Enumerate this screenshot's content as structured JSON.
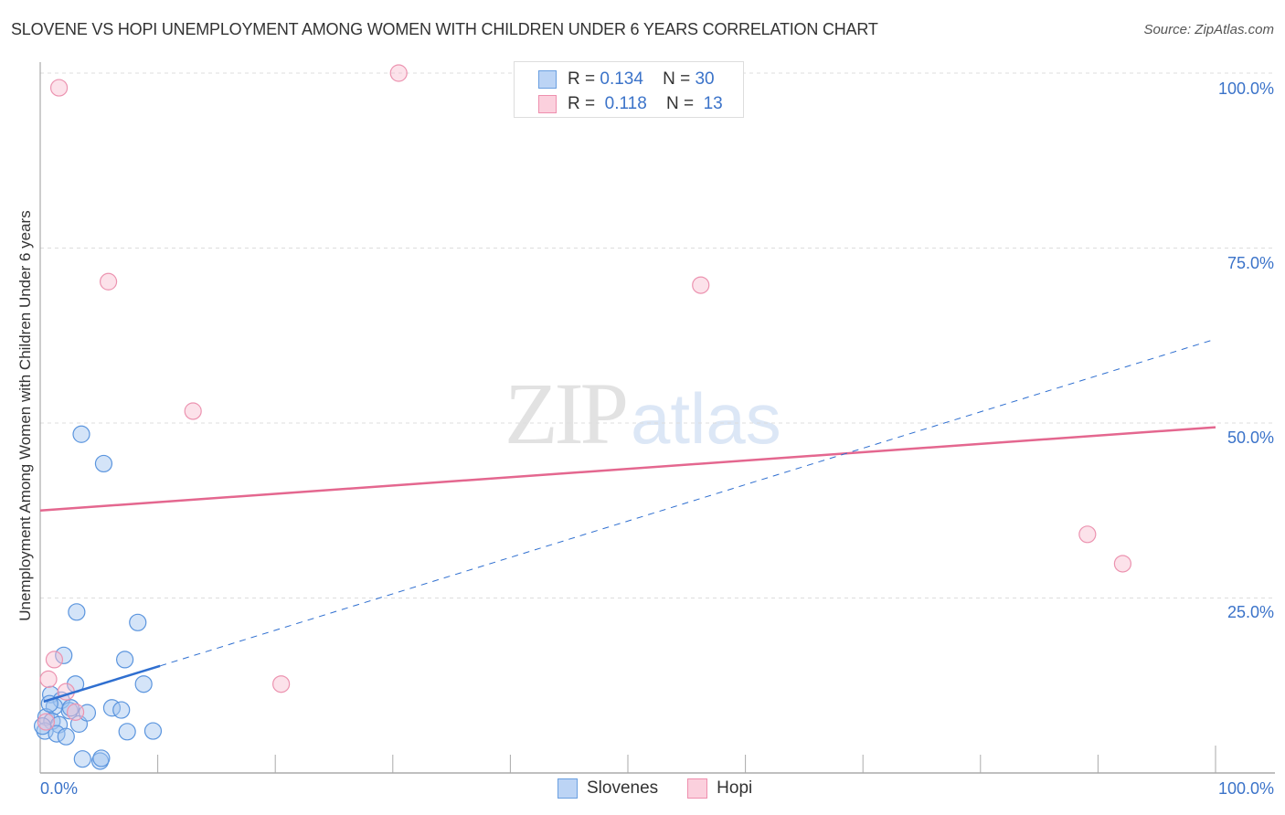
{
  "header": {
    "title": "SLOVENE VS HOPI UNEMPLOYMENT AMONG WOMEN WITH CHILDREN UNDER 6 YEARS CORRELATION CHART",
    "source": "Source: ZipAtlas.com"
  },
  "watermark": {
    "zip": "ZIP",
    "atlas": "atlas"
  },
  "legend_box": {
    "rows": [
      {
        "series": "Slovenes",
        "r_label": "R =",
        "r_value": "0.134",
        "n_label": "N =",
        "n_value": "30",
        "color": "#a9c8f0",
        "border": "#6a9fe0"
      },
      {
        "series": "Hopi",
        "r_label": "R =",
        "r_value": "0.118",
        "n_label": "N =",
        "n_value": "13",
        "color": "#f9c5d5",
        "border": "#ee8fae"
      }
    ]
  },
  "bottom_legend": {
    "items": [
      {
        "label": "Slovenes",
        "color": "#bcd4f5",
        "border": "#6a9fe0"
      },
      {
        "label": "Hopi",
        "color": "#fbd0dd",
        "border": "#ee8fae"
      }
    ]
  },
  "axes": {
    "y_label": "Unemployment Among Women with Children Under 6 years",
    "y_ticks": [
      "100.0%",
      "75.0%",
      "50.0%",
      "25.0%"
    ],
    "x_min_label": "0.0%",
    "x_max_label": "100.0%"
  },
  "colors": {
    "slovenes_fill": "rgba(160,196,240,0.45)",
    "slovenes_stroke": "#5b95de",
    "slovenes_line": "#2f6fd0",
    "hopi_fill": "rgba(249,190,208,0.45)",
    "hopi_stroke": "#ec93b0",
    "hopi_line": "#e4678f",
    "grid": "#dddddd",
    "axis": "#aaaaaa",
    "tick_label": "#3b73c9"
  },
  "chart_data": {
    "type": "scatter",
    "title": "SLOVENE VS HOPI UNEMPLOYMENT AMONG WOMEN WITH CHILDREN UNDER 6 YEARS CORRELATION CHART",
    "xlabel": "",
    "ylabel": "Unemployment Among Women with Children Under 6 years",
    "xlim": [
      0,
      100
    ],
    "ylim": [
      0,
      100
    ],
    "x_tick_labels": [
      "0.0%",
      "100.0%"
    ],
    "y_tick_labels": [
      "25.0%",
      "50.0%",
      "75.0%",
      "100.0%"
    ],
    "grid": true,
    "legend_position": "top-center and bottom-center",
    "series": [
      {
        "name": "Slovenes",
        "R": 0.134,
        "N": 30,
        "points": [
          [
            3.5,
            48.4
          ],
          [
            5.4,
            44.2
          ],
          [
            3.1,
            23.0
          ],
          [
            8.3,
            21.5
          ],
          [
            2.0,
            16.8
          ],
          [
            7.2,
            16.2
          ],
          [
            8.8,
            12.7
          ],
          [
            3.0,
            12.7
          ],
          [
            0.9,
            11.2
          ],
          [
            1.8,
            10.4
          ],
          [
            1.2,
            9.5
          ],
          [
            2.5,
            8.9
          ],
          [
            6.1,
            9.3
          ],
          [
            6.9,
            9.0
          ],
          [
            0.5,
            8.0
          ],
          [
            1.0,
            7.4
          ],
          [
            1.6,
            6.9
          ],
          [
            3.3,
            7.0
          ],
          [
            0.4,
            6.0
          ],
          [
            1.4,
            5.6
          ],
          [
            2.2,
            5.2
          ],
          [
            7.4,
            5.9
          ],
          [
            9.6,
            6.0
          ],
          [
            3.6,
            2.0
          ],
          [
            5.1,
            1.7
          ],
          [
            5.2,
            2.1
          ],
          [
            2.6,
            9.3
          ],
          [
            0.8,
            9.9
          ],
          [
            4.0,
            8.6
          ],
          [
            0.2,
            6.7
          ]
        ],
        "trend": {
          "x0": 0.3,
          "y0": 10.2,
          "x_solid_end": 10.2,
          "y_solid_end": 15.3,
          "x1": 100,
          "y1": 62.0,
          "style": "solid then dashed"
        }
      },
      {
        "name": "Hopi",
        "R": 0.118,
        "N": 13,
        "points": [
          [
            1.6,
            97.9
          ],
          [
            30.5,
            100.0
          ],
          [
            5.8,
            70.2
          ],
          [
            56.2,
            69.7
          ],
          [
            13.0,
            51.7
          ],
          [
            20.5,
            12.7
          ],
          [
            89.1,
            34.1
          ],
          [
            92.1,
            29.9
          ],
          [
            1.2,
            16.2
          ],
          [
            0.7,
            13.4
          ],
          [
            2.2,
            11.6
          ],
          [
            3.0,
            8.7
          ],
          [
            0.5,
            7.3
          ]
        ],
        "trend": {
          "x0": 0,
          "y0": 37.5,
          "x1": 100,
          "y1": 49.4,
          "style": "solid"
        }
      }
    ]
  }
}
